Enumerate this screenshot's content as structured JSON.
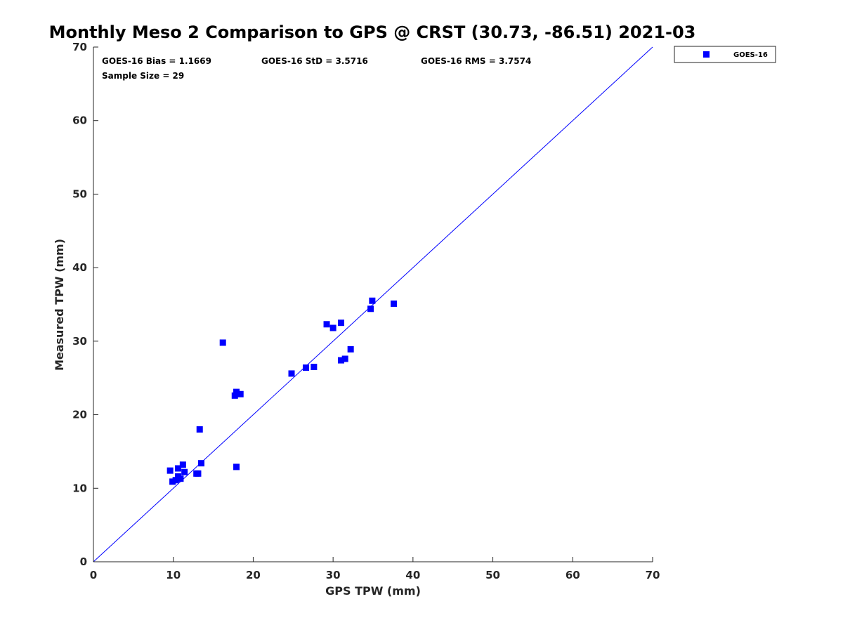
{
  "chart_data": {
    "type": "scatter",
    "title": "Monthly Meso 2 Comparison to GPS @ CRST (30.73, -86.51) 2021-03",
    "xlabel": "GPS TPW (mm)",
    "ylabel": "Measured TPW (mm)",
    "xlim": [
      0,
      70
    ],
    "ylim": [
      0,
      70
    ],
    "xticks": [
      "0",
      "10",
      "20",
      "30",
      "40",
      "50",
      "60",
      "70"
    ],
    "yticks": [
      "0",
      "10",
      "20",
      "30",
      "40",
      "50",
      "60",
      "70"
    ],
    "grid": false,
    "legend_position": "outside-top-right",
    "reference_line": {
      "from": [
        0,
        0
      ],
      "to": [
        70,
        70
      ],
      "color": "#0000ff"
    },
    "stats": {
      "bias": "GOES-16 Bias = 1.1669",
      "std": "GOES-16 StD = 3.5716",
      "rms": "GOES-16 RMS = 3.7574",
      "sample_size": "Sample Size = 29"
    },
    "series": [
      {
        "name": "GOES-16",
        "color": "#0000ff",
        "marker": "square",
        "points": [
          [
            9.6,
            12.4
          ],
          [
            9.9,
            10.9
          ],
          [
            10.3,
            11.1
          ],
          [
            10.6,
            11.6
          ],
          [
            10.6,
            12.7
          ],
          [
            10.9,
            11.3
          ],
          [
            11.2,
            13.2
          ],
          [
            11.4,
            12.2
          ],
          [
            13.1,
            12.0
          ],
          [
            13.3,
            18.0
          ],
          [
            13.5,
            13.4
          ],
          [
            16.2,
            29.8
          ],
          [
            17.7,
            22.6
          ],
          [
            17.9,
            23.1
          ],
          [
            18.4,
            22.8
          ],
          [
            17.9,
            12.9
          ],
          [
            24.8,
            25.6
          ],
          [
            26.6,
            26.4
          ],
          [
            27.6,
            26.5
          ],
          [
            29.2,
            32.3
          ],
          [
            30.0,
            31.8
          ],
          [
            31.0,
            32.5
          ],
          [
            31.0,
            27.4
          ],
          [
            31.5,
            27.6
          ],
          [
            32.2,
            28.9
          ],
          [
            34.7,
            34.4
          ],
          [
            34.9,
            35.5
          ],
          [
            37.6,
            35.1
          ],
          [
            12.9,
            12.0
          ]
        ]
      }
    ]
  }
}
